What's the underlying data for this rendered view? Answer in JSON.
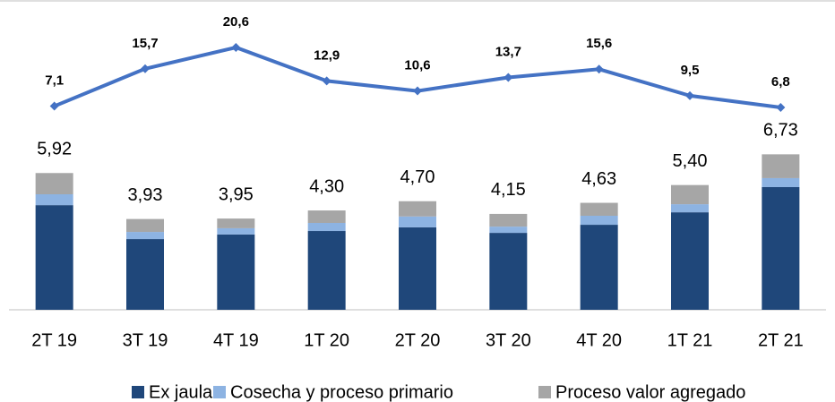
{
  "chart_data": {
    "type": "bar",
    "stacked": true,
    "categories": [
      "2T 19",
      "3T 19",
      "4T 19",
      "1T 20",
      "2T 20",
      "3T 20",
      "4T 20",
      "1T 21",
      "2T 21"
    ],
    "series": [
      {
        "name": "Ex jaula",
        "color": "#1f477a",
        "values": [
          4.53,
          3.06,
          3.26,
          3.41,
          3.57,
          3.33,
          3.68,
          4.22,
          5.31
        ]
      },
      {
        "name": "Cosecha y proceso primario",
        "color": "#8db3e2",
        "values": [
          0.47,
          0.31,
          0.27,
          0.35,
          0.47,
          0.27,
          0.39,
          0.35,
          0.39
        ]
      },
      {
        "name": "Proceso valor agregado",
        "color": "#a6a6a6",
        "values": [
          0.92,
          0.56,
          0.42,
          0.54,
          0.66,
          0.55,
          0.56,
          0.83,
          1.03
        ]
      }
    ],
    "totals": {
      "values": [
        5.92,
        3.93,
        3.95,
        4.3,
        4.7,
        4.15,
        4.63,
        5.4,
        6.73
      ],
      "value_labels": [
        "5,92",
        "3,93",
        "3,95",
        "4,30",
        "4,70",
        "4,15",
        "4,63",
        "5,40",
        "6,73"
      ]
    },
    "line": {
      "type": "line",
      "color": "#4472c4",
      "values": [
        7.1,
        15.7,
        20.6,
        12.9,
        10.6,
        13.7,
        15.6,
        9.5,
        6.8
      ],
      "value_labels": [
        "7,1",
        "15,7",
        "20,6",
        "12,9",
        "10,6",
        "13,7",
        "15,6",
        "9,5",
        "6,8"
      ]
    },
    "legend": "bottom"
  }
}
